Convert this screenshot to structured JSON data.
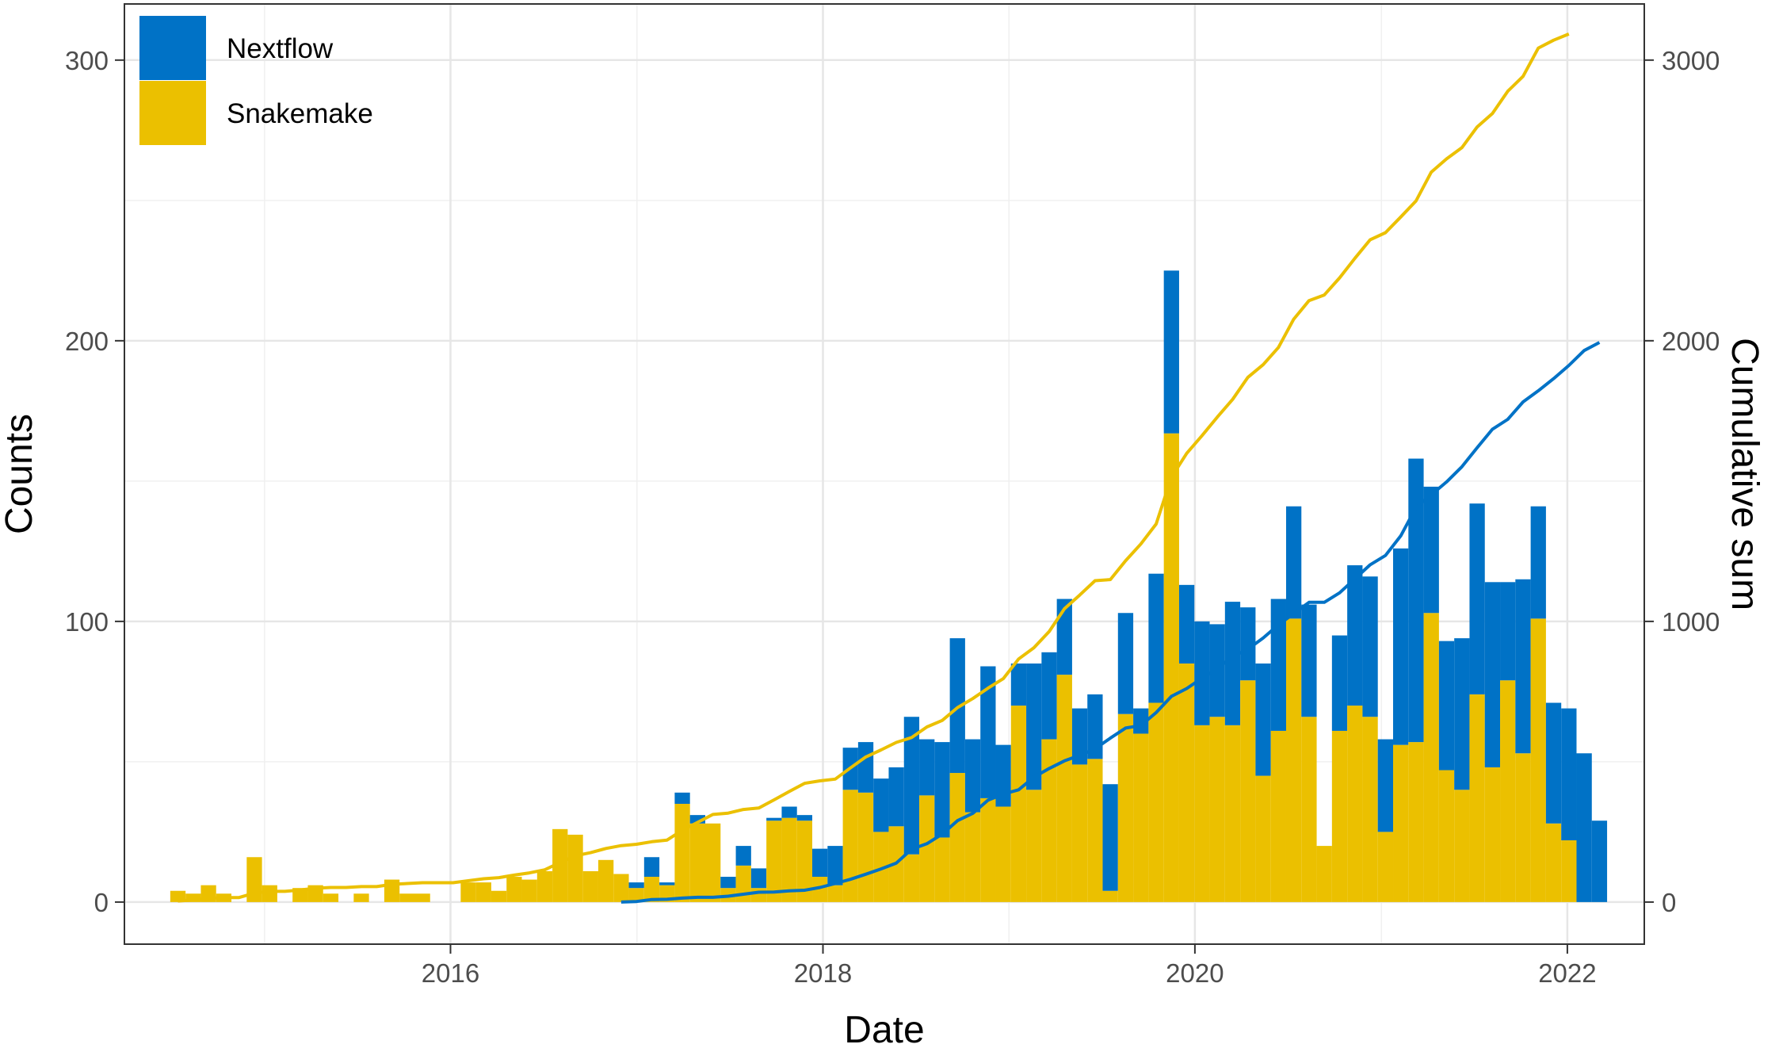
{
  "chart_data": {
    "type": "bar",
    "stacked": true,
    "bin_width_days": 30,
    "xlabel": "Date",
    "ylabel": "Counts",
    "y2label": "Cumulative sum",
    "xlim": [
      "2014-04-01",
      "2022-06-01"
    ],
    "ylim": [
      -15,
      320
    ],
    "y2lim": [
      -150,
      3200
    ],
    "x_ticks": [
      "2016",
      "2018",
      "2020",
      "2022"
    ],
    "x_tick_dates": [
      "2016-01-01",
      "2018-01-01",
      "2020-01-01",
      "2022-01-01"
    ],
    "y_ticks": [
      0,
      100,
      200,
      300
    ],
    "y2_ticks": [
      0,
      1000,
      2000,
      3000
    ],
    "grid": true,
    "legend_position": "top-left",
    "colors": {
      "Nextflow": "#0072c6",
      "Snakemake": "#ebc000"
    },
    "x": [
      "2014-07-15",
      "2014-08-14",
      "2014-09-13",
      "2014-10-13",
      "2014-11-12",
      "2014-12-12",
      "2015-01-11",
      "2015-02-10",
      "2015-03-12",
      "2015-04-11",
      "2015-05-11",
      "2015-06-10",
      "2015-07-10",
      "2015-08-09",
      "2015-09-08",
      "2015-10-08",
      "2015-11-07",
      "2015-12-07",
      "2016-01-06",
      "2016-02-05",
      "2016-03-06",
      "2016-04-05",
      "2016-05-05",
      "2016-06-04",
      "2016-07-04",
      "2016-08-03",
      "2016-09-02",
      "2016-10-02",
      "2016-11-01",
      "2016-12-01",
      "2016-12-31",
      "2017-01-30",
      "2017-03-01",
      "2017-03-31",
      "2017-04-30",
      "2017-05-30",
      "2017-06-29",
      "2017-07-29",
      "2017-08-28",
      "2017-09-27",
      "2017-10-27",
      "2017-11-26",
      "2017-12-26",
      "2018-01-25",
      "2018-02-24",
      "2018-03-26",
      "2018-04-25",
      "2018-05-25",
      "2018-06-24",
      "2018-07-24",
      "2018-08-23",
      "2018-09-22",
      "2018-10-22",
      "2018-11-21",
      "2018-12-21",
      "2019-01-20",
      "2019-02-19",
      "2019-03-21",
      "2019-04-20",
      "2019-05-20",
      "2019-06-19",
      "2019-07-19",
      "2019-08-18",
      "2019-09-17",
      "2019-10-17",
      "2019-11-16",
      "2019-12-16",
      "2020-01-15",
      "2020-02-14",
      "2020-03-15",
      "2020-04-14",
      "2020-05-14",
      "2020-06-13",
      "2020-07-13",
      "2020-08-12",
      "2020-09-11",
      "2020-10-11",
      "2020-11-10",
      "2020-12-10",
      "2021-01-09",
      "2021-02-08",
      "2021-03-10",
      "2021-04-09",
      "2021-05-09",
      "2021-06-08",
      "2021-07-08",
      "2021-08-07",
      "2021-09-06",
      "2021-10-06",
      "2021-11-05",
      "2021-12-05",
      "2022-01-04",
      "2022-02-03",
      "2022-03-05"
    ],
    "series": [
      {
        "name": "Snakemake",
        "values": [
          4,
          3,
          6,
          3,
          0,
          16,
          6,
          0,
          5,
          6,
          3,
          0,
          3,
          0,
          8,
          3,
          3,
          0,
          0,
          7,
          7,
          4,
          9,
          8,
          11,
          26,
          24,
          11,
          15,
          10,
          5,
          9,
          6,
          35,
          28,
          28,
          5,
          13,
          5,
          29,
          30,
          29,
          9,
          6,
          40,
          39,
          25,
          27,
          17,
          38,
          23,
          46,
          32,
          37,
          34,
          70,
          40,
          58,
          81,
          49,
          51,
          4,
          67,
          60,
          71,
          167,
          85,
          63,
          66,
          63,
          79,
          45,
          61,
          101,
          66,
          20,
          61,
          70,
          66,
          25,
          56,
          57,
          103,
          47,
          40,
          74,
          48,
          79,
          53,
          101,
          28,
          22,
          0,
          0
        ]
      },
      {
        "name": "Nextflow",
        "values": [
          0,
          0,
          0,
          0,
          0,
          0,
          0,
          0,
          0,
          0,
          0,
          0,
          0,
          0,
          0,
          0,
          0,
          0,
          0,
          0,
          0,
          0,
          0,
          0,
          0,
          0,
          0,
          0,
          0,
          0,
          2,
          7,
          1,
          4,
          3,
          0,
          4,
          7,
          7,
          1,
          4,
          2,
          10,
          14,
          15,
          18,
          19,
          21,
          49,
          20,
          34,
          48,
          26,
          47,
          22,
          15,
          45,
          31,
          27,
          20,
          23,
          38,
          36,
          9,
          46,
          58,
          28,
          37,
          33,
          44,
          26,
          40,
          47,
          40,
          40,
          0,
          34,
          50,
          50,
          33,
          70,
          101,
          45,
          46,
          54,
          68,
          66,
          35,
          62,
          40,
          43,
          47,
          53,
          29
        ]
      }
    ],
    "cumulative": [
      {
        "name": "Snakemake",
        "values": [
          4,
          7,
          13,
          16,
          16,
          32,
          38,
          38,
          43,
          49,
          52,
          52,
          55,
          55,
          63,
          66,
          69,
          69,
          69,
          76,
          83,
          87,
          96,
          104,
          115,
          141,
          165,
          176,
          191,
          201,
          206,
          215,
          221,
          256,
          284,
          312,
          317,
          330,
          335,
          364,
          394,
          423,
          432,
          438,
          478,
          517,
          542,
          569,
          586,
          624,
          647,
          693,
          725,
          762,
          796,
          866,
          906,
          964,
          1045,
          1094,
          1145,
          1149,
          1216,
          1276,
          1347,
          1514,
          1599,
          1662,
          1728,
          1791,
          1870,
          1915,
          1976,
          2077,
          2143,
          2163,
          2224,
          2294,
          2360,
          2385,
          2441,
          2498,
          2601,
          2648,
          2688,
          2762,
          2810,
          2889,
          2942,
          3043,
          3071,
          3093,
          3093,
          3093
        ]
      },
      {
        "name": "Nextflow",
        "values": [
          0,
          0,
          0,
          0,
          0,
          0,
          0,
          0,
          0,
          0,
          0,
          0,
          0,
          0,
          0,
          0,
          0,
          0,
          0,
          0,
          0,
          0,
          0,
          0,
          0,
          0,
          0,
          0,
          0,
          0,
          2,
          9,
          10,
          14,
          17,
          17,
          21,
          28,
          35,
          36,
          40,
          42,
          52,
          66,
          81,
          99,
          118,
          139,
          188,
          208,
          242,
          290,
          316,
          363,
          385,
          400,
          445,
          476,
          503,
          523,
          546,
          584,
          620,
          629,
          675,
          733,
          761,
          798,
          831,
          875,
          901,
          941,
          988,
          1028,
          1068,
          1068,
          1102,
          1152,
          1202,
          1235,
          1305,
          1406,
          1451,
          1497,
          1551,
          1619,
          1685,
          1720,
          1782,
          1822,
          1865,
          1912,
          1965,
          1994
        ]
      }
    ]
  },
  "legend": {
    "items": [
      {
        "label": "Nextflow",
        "color": "#0072c6"
      },
      {
        "label": "Snakemake",
        "color": "#ebc000"
      }
    ]
  }
}
